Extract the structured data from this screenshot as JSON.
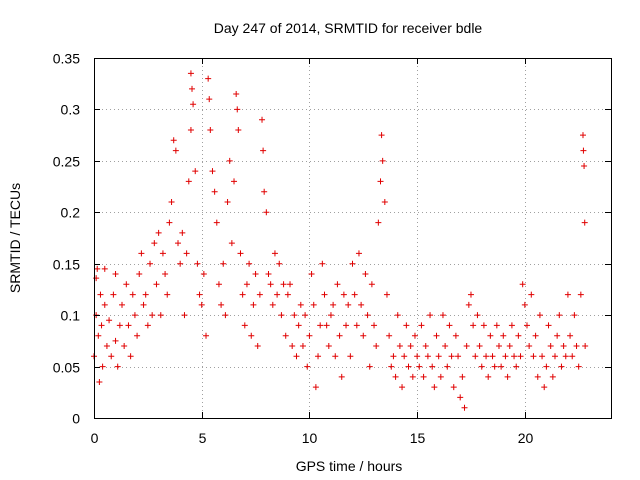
{
  "chart_data": {
    "type": "scatter",
    "title": "Day 247 of 2014, SRMTID for receiver bdle",
    "xlabel": "GPS time / hours",
    "ylabel": "SRMTID / TECUs",
    "xlim": [
      0,
      24
    ],
    "ylim": [
      0,
      0.35
    ],
    "x_ticks": [
      "0",
      "5",
      "10",
      "15",
      "20"
    ],
    "y_ticks": [
      "0",
      "0.05",
      "0.1",
      "0.15",
      "0.2",
      "0.25",
      "0.3",
      "0.35"
    ],
    "grid": true,
    "marker": "plus",
    "color": "#e00000",
    "series": [
      {
        "name": "SRMTID",
        "points": [
          [
            0.0,
            0.06
          ],
          [
            0.1,
            0.1
          ],
          [
            0.1,
            0.136
          ],
          [
            0.15,
            0.145
          ],
          [
            0.2,
            0.08
          ],
          [
            0.25,
            0.035
          ],
          [
            0.3,
            0.12
          ],
          [
            0.35,
            0.09
          ],
          [
            0.4,
            0.05
          ],
          [
            0.5,
            0.11
          ],
          [
            0.5,
            0.145
          ],
          [
            0.6,
            0.07
          ],
          [
            0.7,
            0.095
          ],
          [
            0.8,
            0.06
          ],
          [
            0.9,
            0.12
          ],
          [
            1.0,
            0.075
          ],
          [
            1.0,
            0.14
          ],
          [
            1.1,
            0.05
          ],
          [
            1.2,
            0.09
          ],
          [
            1.3,
            0.11
          ],
          [
            1.4,
            0.07
          ],
          [
            1.5,
            0.13
          ],
          [
            1.6,
            0.09
          ],
          [
            1.7,
            0.06
          ],
          [
            1.8,
            0.12
          ],
          [
            1.9,
            0.1
          ],
          [
            2.0,
            0.08
          ],
          [
            2.1,
            0.14
          ],
          [
            2.2,
            0.16
          ],
          [
            2.3,
            0.11
          ],
          [
            2.4,
            0.12
          ],
          [
            2.5,
            0.09
          ],
          [
            2.6,
            0.15
          ],
          [
            2.7,
            0.1
          ],
          [
            2.8,
            0.17
          ],
          [
            2.9,
            0.13
          ],
          [
            3.0,
            0.18
          ],
          [
            3.1,
            0.1
          ],
          [
            3.2,
            0.16
          ],
          [
            3.3,
            0.14
          ],
          [
            3.4,
            0.12
          ],
          [
            3.5,
            0.19
          ],
          [
            3.6,
            0.21
          ],
          [
            3.7,
            0.27
          ],
          [
            3.8,
            0.26
          ],
          [
            3.9,
            0.17
          ],
          [
            4.0,
            0.15
          ],
          [
            4.1,
            0.18
          ],
          [
            4.2,
            0.1
          ],
          [
            4.3,
            0.16
          ],
          [
            4.4,
            0.23
          ],
          [
            4.5,
            0.28
          ],
          [
            4.5,
            0.335
          ],
          [
            4.55,
            0.32
          ],
          [
            4.6,
            0.305
          ],
          [
            4.7,
            0.24
          ],
          [
            4.8,
            0.15
          ],
          [
            4.9,
            0.12
          ],
          [
            5.0,
            0.11
          ],
          [
            5.1,
            0.14
          ],
          [
            5.2,
            0.08
          ],
          [
            5.3,
            0.33
          ],
          [
            5.35,
            0.31
          ],
          [
            5.4,
            0.28
          ],
          [
            5.5,
            0.24
          ],
          [
            5.6,
            0.22
          ],
          [
            5.7,
            0.19
          ],
          [
            5.8,
            0.13
          ],
          [
            5.9,
            0.11
          ],
          [
            6.0,
            0.15
          ],
          [
            6.1,
            0.1
          ],
          [
            6.2,
            0.21
          ],
          [
            6.3,
            0.25
          ],
          [
            6.4,
            0.17
          ],
          [
            6.5,
            0.23
          ],
          [
            6.6,
            0.315
          ],
          [
            6.65,
            0.3
          ],
          [
            6.7,
            0.28
          ],
          [
            6.8,
            0.16
          ],
          [
            6.9,
            0.12
          ],
          [
            7.0,
            0.09
          ],
          [
            7.1,
            0.13
          ],
          [
            7.2,
            0.15
          ],
          [
            7.3,
            0.08
          ],
          [
            7.4,
            0.11
          ],
          [
            7.5,
            0.14
          ],
          [
            7.6,
            0.07
          ],
          [
            7.7,
            0.12
          ],
          [
            7.8,
            0.29
          ],
          [
            7.85,
            0.26
          ],
          [
            7.9,
            0.22
          ],
          [
            8.0,
            0.2
          ],
          [
            8.1,
            0.14
          ],
          [
            8.2,
            0.13
          ],
          [
            8.3,
            0.11
          ],
          [
            8.4,
            0.16
          ],
          [
            8.5,
            0.12
          ],
          [
            8.6,
            0.15
          ],
          [
            8.7,
            0.1
          ],
          [
            8.8,
            0.13
          ],
          [
            8.9,
            0.08
          ],
          [
            9.0,
            0.12
          ],
          [
            9.1,
            0.13
          ],
          [
            9.2,
            0.07
          ],
          [
            9.3,
            0.1
          ],
          [
            9.4,
            0.06
          ],
          [
            9.5,
            0.09
          ],
          [
            9.6,
            0.11
          ],
          [
            9.7,
            0.07
          ],
          [
            9.8,
            0.1
          ],
          [
            9.9,
            0.05
          ],
          [
            10.0,
            0.08
          ],
          [
            10.1,
            0.14
          ],
          [
            10.2,
            0.11
          ],
          [
            10.3,
            0.03
          ],
          [
            10.4,
            0.06
          ],
          [
            10.5,
            0.09
          ],
          [
            10.6,
            0.15
          ],
          [
            10.7,
            0.12
          ],
          [
            10.8,
            0.09
          ],
          [
            10.9,
            0.07
          ],
          [
            11.0,
            0.1
          ],
          [
            11.1,
            0.11
          ],
          [
            11.2,
            0.06
          ],
          [
            11.3,
            0.13
          ],
          [
            11.4,
            0.08
          ],
          [
            11.5,
            0.04
          ],
          [
            11.6,
            0.12
          ],
          [
            11.7,
            0.09
          ],
          [
            11.8,
            0.11
          ],
          [
            11.9,
            0.06
          ],
          [
            12.0,
            0.15
          ],
          [
            12.1,
            0.12
          ],
          [
            12.2,
            0.09
          ],
          [
            12.3,
            0.16
          ],
          [
            12.4,
            0.11
          ],
          [
            12.5,
            0.08
          ],
          [
            12.6,
            0.14
          ],
          [
            12.7,
            0.1
          ],
          [
            12.8,
            0.05
          ],
          [
            12.9,
            0.13
          ],
          [
            13.0,
            0.09
          ],
          [
            13.1,
            0.07
          ],
          [
            13.2,
            0.19
          ],
          [
            13.3,
            0.23
          ],
          [
            13.35,
            0.275
          ],
          [
            13.4,
            0.25
          ],
          [
            13.5,
            0.21
          ],
          [
            13.6,
            0.12
          ],
          [
            13.7,
            0.08
          ],
          [
            13.8,
            0.05
          ],
          [
            13.9,
            0.06
          ],
          [
            14.0,
            0.04
          ],
          [
            14.1,
            0.1
          ],
          [
            14.2,
            0.07
          ],
          [
            14.3,
            0.03
          ],
          [
            14.4,
            0.06
          ],
          [
            14.5,
            0.09
          ],
          [
            14.6,
            0.05
          ],
          [
            14.7,
            0.07
          ],
          [
            14.8,
            0.04
          ],
          [
            14.9,
            0.08
          ],
          [
            15.0,
            0.06
          ],
          [
            15.1,
            0.05
          ],
          [
            15.2,
            0.09
          ],
          [
            15.3,
            0.04
          ],
          [
            15.4,
            0.07
          ],
          [
            15.5,
            0.06
          ],
          [
            15.6,
            0.1
          ],
          [
            15.7,
            0.05
          ],
          [
            15.8,
            0.03
          ],
          [
            15.9,
            0.08
          ],
          [
            16.0,
            0.06
          ],
          [
            16.1,
            0.04
          ],
          [
            16.2,
            0.1
          ],
          [
            16.3,
            0.07
          ],
          [
            16.4,
            0.05
          ],
          [
            16.5,
            0.09
          ],
          [
            16.6,
            0.06
          ],
          [
            16.7,
            0.03
          ],
          [
            16.8,
            0.08
          ],
          [
            16.9,
            0.06
          ],
          [
            17.0,
            0.02
          ],
          [
            17.1,
            0.04
          ],
          [
            17.2,
            0.01
          ],
          [
            17.3,
            0.07
          ],
          [
            17.4,
            0.11
          ],
          [
            17.5,
            0.12
          ],
          [
            17.6,
            0.09
          ],
          [
            17.7,
            0.06
          ],
          [
            17.8,
            0.1
          ],
          [
            17.9,
            0.07
          ],
          [
            18.0,
            0.05
          ],
          [
            18.1,
            0.09
          ],
          [
            18.2,
            0.06
          ],
          [
            18.3,
            0.04
          ],
          [
            18.4,
            0.08
          ],
          [
            18.5,
            0.06
          ],
          [
            18.6,
            0.05
          ],
          [
            18.7,
            0.09
          ],
          [
            18.8,
            0.07
          ],
          [
            18.9,
            0.05
          ],
          [
            19.0,
            0.08
          ],
          [
            19.1,
            0.06
          ],
          [
            19.2,
            0.04
          ],
          [
            19.3,
            0.07
          ],
          [
            19.4,
            0.09
          ],
          [
            19.5,
            0.06
          ],
          [
            19.6,
            0.05
          ],
          [
            19.7,
            0.08
          ],
          [
            19.8,
            0.06
          ],
          [
            19.9,
            0.13
          ],
          [
            20.0,
            0.11
          ],
          [
            20.1,
            0.09
          ],
          [
            20.2,
            0.07
          ],
          [
            20.3,
            0.12
          ],
          [
            20.4,
            0.06
          ],
          [
            20.5,
            0.08
          ],
          [
            20.6,
            0.04
          ],
          [
            20.7,
            0.1
          ],
          [
            20.8,
            0.06
          ],
          [
            20.9,
            0.03
          ],
          [
            21.0,
            0.05
          ],
          [
            21.1,
            0.09
          ],
          [
            21.2,
            0.07
          ],
          [
            21.3,
            0.04
          ],
          [
            21.4,
            0.06
          ],
          [
            21.5,
            0.08
          ],
          [
            21.6,
            0.1
          ],
          [
            21.7,
            0.05
          ],
          [
            21.8,
            0.07
          ],
          [
            21.9,
            0.06
          ],
          [
            22.0,
            0.12
          ],
          [
            22.1,
            0.08
          ],
          [
            22.2,
            0.06
          ],
          [
            22.3,
            0.1
          ],
          [
            22.4,
            0.07
          ],
          [
            22.5,
            0.05
          ],
          [
            22.6,
            0.12
          ],
          [
            22.7,
            0.275
          ],
          [
            22.72,
            0.26
          ],
          [
            22.75,
            0.245
          ],
          [
            22.78,
            0.19
          ],
          [
            22.8,
            0.07
          ]
        ]
      }
    ]
  }
}
